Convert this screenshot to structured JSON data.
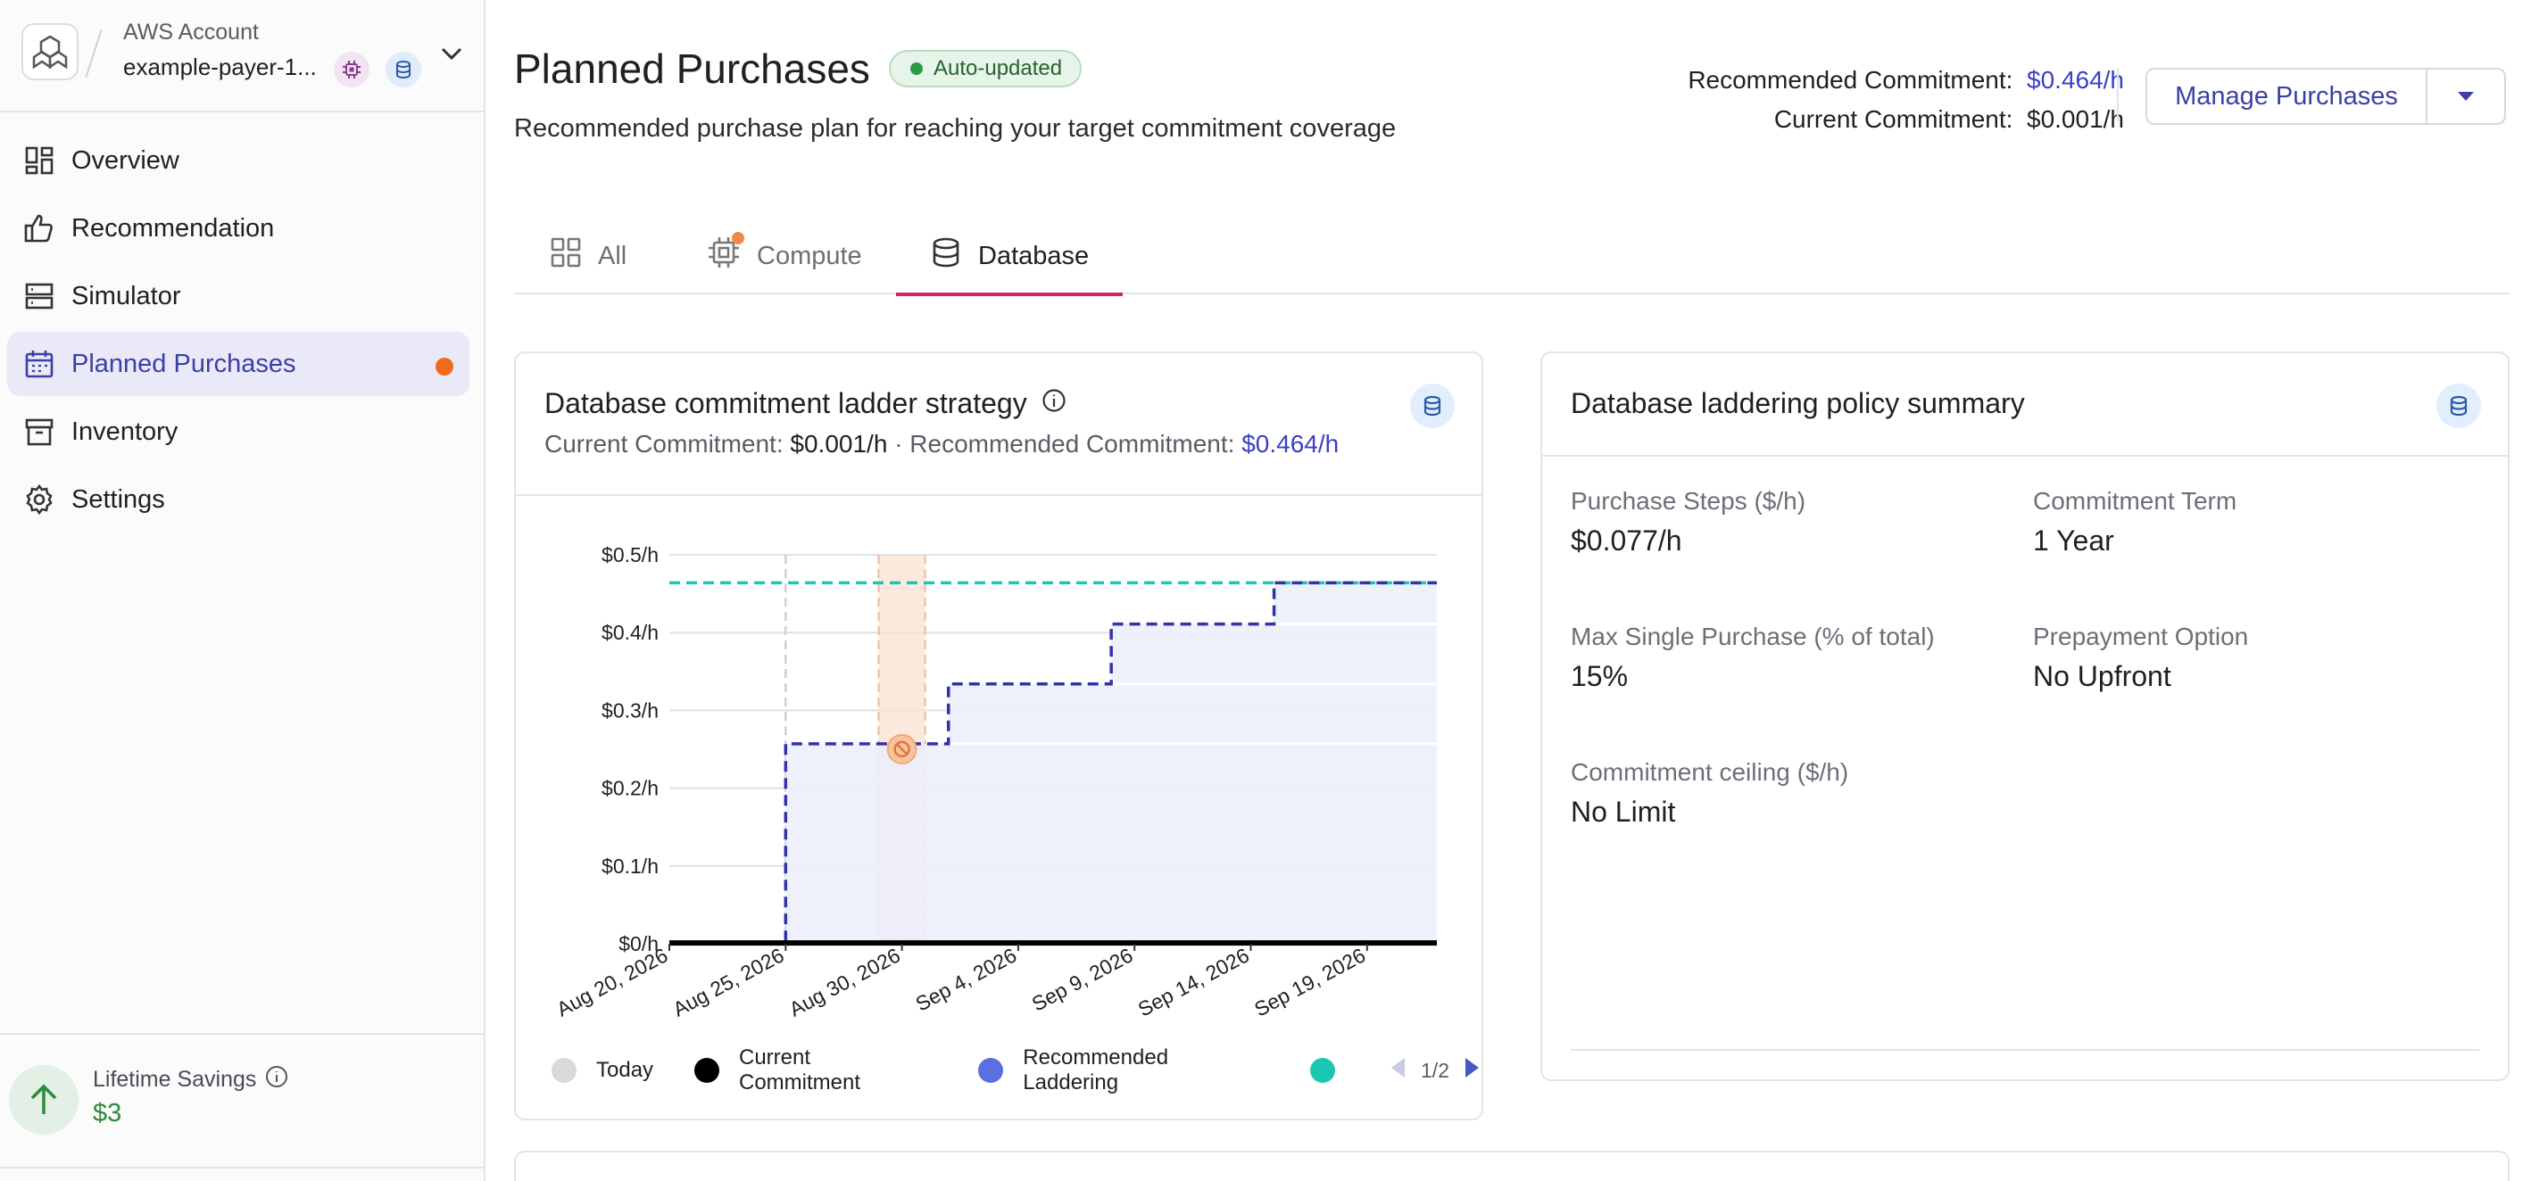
{
  "account": {
    "label": "AWS Account",
    "name": "example-payer-1...",
    "badges": [
      "compute-chip-icon",
      "database-icon"
    ]
  },
  "nav": {
    "items": [
      {
        "label": "Overview",
        "icon": "dashboard-icon"
      },
      {
        "label": "Recommendation",
        "icon": "thumbs-up-icon"
      },
      {
        "label": "Simulator",
        "icon": "server-icon"
      },
      {
        "label": "Planned Purchases",
        "icon": "calendar-icon",
        "active": true,
        "notification": true
      },
      {
        "label": "Inventory",
        "icon": "archive-icon"
      },
      {
        "label": "Settings",
        "icon": "gear-icon"
      }
    ]
  },
  "savings": {
    "label": "Lifetime Savings",
    "value": "$3"
  },
  "header": {
    "title": "Planned Purchases",
    "badge": "Auto-updated",
    "subtitle": "Recommended purchase plan for reaching your target commitment coverage",
    "recommended_label": "Recommended Commitment:",
    "recommended_value": "$0.464/h",
    "current_label": "Current Commitment:",
    "current_value": "$0.001/h",
    "manage_button": "Manage Purchases"
  },
  "tabs": [
    {
      "label": "All",
      "icon": "grid-icon"
    },
    {
      "label": "Compute",
      "icon": "compute-chip-icon",
      "notification": true
    },
    {
      "label": "Database",
      "icon": "database-icon",
      "active": true
    }
  ],
  "ladder_card": {
    "title": "Database commitment ladder strategy",
    "current_label": "Current Commitment:",
    "current_value": "$0.001/h",
    "separator": "·",
    "recommended_label": "Recommended Commitment:",
    "recommended_value": "$0.464/h",
    "legend": [
      {
        "label": "Today",
        "color": "#d9d9dc"
      },
      {
        "label": "Current Commitment",
        "color": "#000000"
      },
      {
        "label": "Recommended Laddering",
        "color": "#5b6fe0"
      },
      {
        "label": "",
        "color": "#1cc7b1"
      }
    ],
    "pager": "1/2"
  },
  "chart_data": {
    "type": "line",
    "x_ticks": [
      "Aug 20, 2026",
      "Aug 25, 2026",
      "Aug 30, 2026",
      "Sep 4, 2026",
      "Sep 9, 2026",
      "Sep 14, 2026",
      "Sep 19, 2026"
    ],
    "y_ticks": [
      "$0/h",
      "$0.1/h",
      "$0.2/h",
      "$0.3/h",
      "$0.4/h",
      "$0.5/h"
    ],
    "ylim": [
      0,
      0.5
    ],
    "xlim": [
      "2026-08-20",
      "2026-09-22"
    ],
    "today": "2026-08-25",
    "blocked_window": [
      "2026-08-29",
      "2026-08-31"
    ],
    "series": [
      {
        "name": "Current Commitment",
        "color": "#000000",
        "style": "solid",
        "points": [
          [
            "2026-08-20",
            0.001
          ],
          [
            "2026-09-22",
            0.001
          ]
        ]
      },
      {
        "name": "Recommended Laddering",
        "color": "#3134a8",
        "style": "step-dashed",
        "points": [
          [
            "2026-08-20",
            0.0
          ],
          [
            "2026-08-25",
            0.257
          ],
          [
            "2026-09-01",
            0.334
          ],
          [
            "2026-09-08",
            0.411
          ],
          [
            "2026-09-15",
            0.464
          ],
          [
            "2026-09-22",
            0.464
          ]
        ]
      },
      {
        "name": "",
        "color": "#1cc7b1",
        "style": "dashed",
        "points": [
          [
            "2026-08-20",
            0.464
          ],
          [
            "2026-09-22",
            0.464
          ]
        ]
      }
    ],
    "grid": true
  },
  "policy_card": {
    "title": "Database laddering policy summary",
    "items": [
      {
        "label": "Purchase Steps ($/h)",
        "value": "$0.077/h"
      },
      {
        "label": "Commitment Term",
        "value": "1 Year"
      },
      {
        "label": "Max Single Purchase (% of total)",
        "value": "15%"
      },
      {
        "label": "Prepayment Option",
        "value": "No Upfront"
      },
      {
        "label": "Commitment ceiling ($/h)",
        "value": "No Limit"
      }
    ]
  }
}
